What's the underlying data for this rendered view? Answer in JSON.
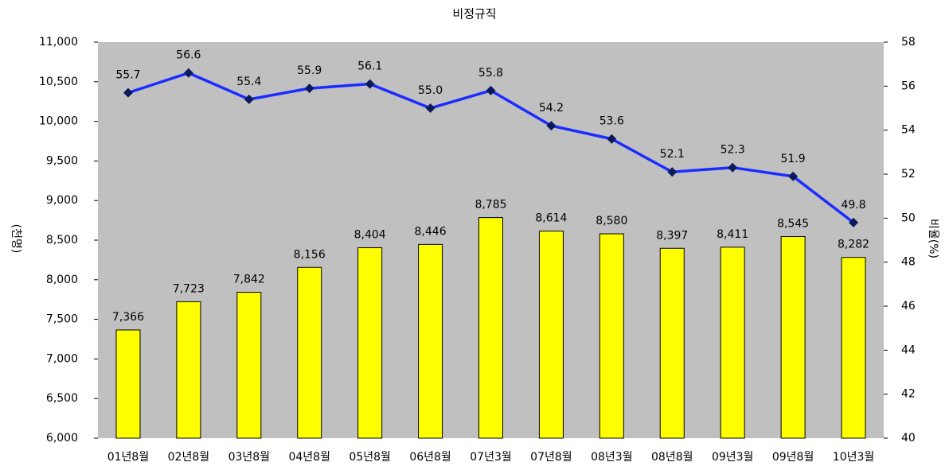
{
  "chart_data": {
    "type": "bar-line",
    "title": "비정규직",
    "y_label": "(천명)",
    "y2_label": "비율(%)",
    "categories": [
      "01년8월",
      "02년8월",
      "03년8월",
      "04년8월",
      "05년8월",
      "06년8월",
      "07년3월",
      "07년8월",
      "08년3월",
      "08년8월",
      "09년3월",
      "09년8월",
      "10년3월"
    ],
    "ylim": [
      6000,
      11000
    ],
    "yticks": [
      {
        "value": 6000,
        "label": "6,000"
      },
      {
        "value": 6500,
        "label": "6,500"
      },
      {
        "value": 7000,
        "label": "7,000"
      },
      {
        "value": 7500,
        "label": "7,500"
      },
      {
        "value": 8000,
        "label": "8,000"
      },
      {
        "value": 8500,
        "label": "8,500"
      },
      {
        "value": 9000,
        "label": "9,000"
      },
      {
        "value": 9500,
        "label": "9,500"
      },
      {
        "value": 10000,
        "label": "10,000"
      },
      {
        "value": 10500,
        "label": "10,500"
      },
      {
        "value": 11000,
        "label": "11,000"
      }
    ],
    "y2lim": [
      40,
      58
    ],
    "y2ticks": [
      40,
      42,
      44,
      46,
      48,
      50,
      52,
      54,
      56,
      58
    ],
    "background": "#c0c0c0",
    "series": [
      {
        "type": "bar",
        "color": "#ffff00",
        "values": [
          7366,
          7723,
          7842,
          8156,
          8404,
          8446,
          8785,
          8614,
          8580,
          8397,
          8411,
          8545,
          8282
        ],
        "value_labels": [
          "7,366",
          "7,723",
          "7,842",
          "8,156",
          "8,404",
          "8,446",
          "8,785",
          "8,614",
          "8,580",
          "8,397",
          "8,411",
          "8,545",
          "8,282"
        ]
      },
      {
        "type": "line",
        "axis": "y2",
        "color": "#1a2cff",
        "marker_color": "#0a1a5c",
        "values": [
          55.7,
          56.6,
          55.4,
          55.9,
          56.1,
          55.0,
          55.8,
          54.2,
          53.6,
          52.1,
          52.3,
          51.9,
          49.8
        ],
        "value_labels": [
          "55.7",
          "56.6",
          "55.4",
          "55.9",
          "56.1",
          "55.0",
          "55.8",
          "54.2",
          "53.6",
          "52.1",
          "52.3",
          "51.9",
          "49.8"
        ]
      }
    ]
  }
}
